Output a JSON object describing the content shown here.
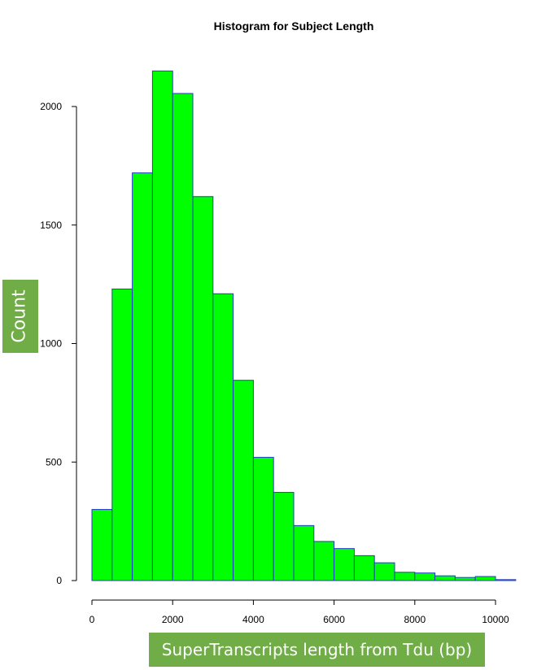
{
  "chart_data": {
    "type": "bar",
    "title": "Histogram for Subject Length",
    "xlabel": "SuperTranscripts length from Tdu (bp)",
    "ylabel": "Count",
    "bin_edges": [
      0,
      500,
      1000,
      1500,
      2000,
      2500,
      3000,
      3500,
      4000,
      4500,
      5000,
      5500,
      6000,
      6500,
      7000,
      7500,
      8000,
      8500,
      9000,
      9500,
      10000,
      10500
    ],
    "values": [
      300,
      1230,
      1720,
      2150,
      2055,
      1620,
      1210,
      845,
      520,
      372,
      232,
      165,
      135,
      105,
      75,
      35,
      32,
      20,
      13,
      17,
      4
    ],
    "xlim": [
      0,
      10500
    ],
    "ylim": [
      0,
      2200
    ],
    "xticks": [
      0,
      2000,
      4000,
      6000,
      8000,
      10000
    ],
    "xtick_labels": [
      "0",
      "2000",
      "4000",
      "6000",
      "8000",
      "10000"
    ],
    "yticks": [
      0,
      500,
      1000,
      1500,
      2000
    ],
    "ytick_labels": [
      "0",
      "500",
      "1000",
      "1500",
      "2000"
    ],
    "grid": false,
    "colors": {
      "bar_fill": "#00ff00",
      "bar_stroke": "#1f3fbf",
      "label_background": "#70ad47",
      "label_text": "#ffffff"
    }
  }
}
